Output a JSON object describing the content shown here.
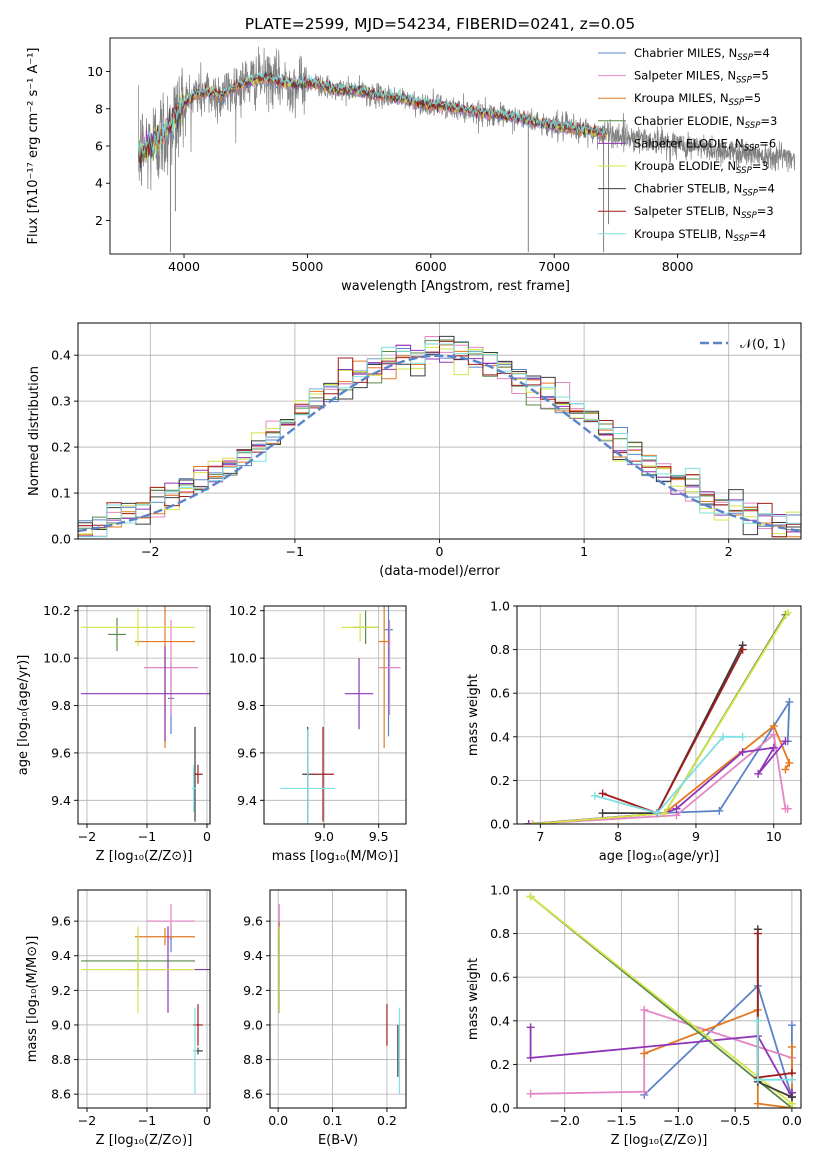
{
  "figure_title": "PLATE=2599, MJD=54234, FIBERID=0241, z=0.05",
  "colors": {
    "chabrier_miles": "#5b83c8",
    "salpeter_miles": "#e386c6",
    "kroupa_miles": "#e37a22",
    "chabrier_elodie": "#5a8a47",
    "salpeter_elodie": "#8f35b8",
    "kroupa_elodie": "#d4e64a",
    "chabrier_stelib": "#3c3c3c",
    "salpeter_stelib": "#a11c1c",
    "kroupa_stelib": "#7ee0e2",
    "data": "#808080",
    "grid": "#b0b0b0",
    "gaussian": "#5b83c8"
  },
  "chart_data": [
    {
      "panel": "spectrum",
      "type": "line",
      "xlabel": "wavelength [Angstrom, rest frame]",
      "ylabel": "Flux [fλ10⁻¹⁷ erg cm⁻² s⁻¹ A⁻¹]",
      "xlim": [
        3400,
        9000
      ],
      "ylim": [
        0.2,
        11.8
      ],
      "xticks": [
        4000,
        5000,
        6000,
        7000,
        8000
      ],
      "yticks": [
        2,
        4,
        6,
        8,
        10
      ],
      "legend_position": "top-right",
      "legend": [
        {
          "base": "Chabrier MILES, N",
          "sub": "SSP",
          "tail": "=4",
          "color_key": "chabrier_miles"
        },
        {
          "base": "Salpeter MILES, N",
          "sub": "SSP",
          "tail": "=5",
          "color_key": "salpeter_miles"
        },
        {
          "base": "Kroupa MILES, N",
          "sub": "SSP",
          "tail": "=5",
          "color_key": "kroupa_miles"
        },
        {
          "base": "Chabrier ELODIE, N",
          "sub": "SSP",
          "tail": "=3",
          "color_key": "chabrier_elodie"
        },
        {
          "base": "Salpeter ELODIE, N",
          "sub": "SSP",
          "tail": "=6",
          "color_key": "salpeter_elodie"
        },
        {
          "base": "Kroupa ELODIE, N",
          "sub": "SSP",
          "tail": "=3",
          "color_key": "kroupa_elodie"
        },
        {
          "base": "Chabrier STELIB, N",
          "sub": "SSP",
          "tail": "=4",
          "color_key": "chabrier_stelib"
        },
        {
          "base": "Salpeter STELIB, N",
          "sub": "SSP",
          "tail": "=3",
          "color_key": "salpeter_stelib"
        },
        {
          "base": "Kroupa STELIB, N",
          "sub": "SSP",
          "tail": "=4",
          "color_key": "kroupa_stelib"
        }
      ],
      "continuum": [
        [
          3630,
          5.6
        ],
        [
          3700,
          5.9
        ],
        [
          3800,
          6.4
        ],
        [
          3900,
          7.2
        ],
        [
          4000,
          8.3
        ],
        [
          4100,
          8.8
        ],
        [
          4200,
          8.9
        ],
        [
          4300,
          8.7
        ],
        [
          4400,
          9.1
        ],
        [
          4500,
          9.4
        ],
        [
          4600,
          9.6
        ],
        [
          4700,
          9.6
        ],
        [
          4800,
          9.4
        ],
        [
          4900,
          9.3
        ],
        [
          5000,
          9.4
        ],
        [
          5100,
          9.3
        ],
        [
          5200,
          9.0
        ],
        [
          5300,
          9.0
        ],
        [
          5400,
          9.0
        ],
        [
          5500,
          8.8
        ],
        [
          5600,
          8.7
        ],
        [
          5700,
          8.6
        ],
        [
          5800,
          8.5
        ],
        [
          5900,
          8.3
        ],
        [
          6000,
          8.2
        ],
        [
          6100,
          8.1
        ],
        [
          6200,
          8.0
        ],
        [
          6300,
          7.9
        ],
        [
          6400,
          7.8
        ],
        [
          6500,
          7.7
        ],
        [
          6600,
          7.6
        ],
        [
          6700,
          7.5
        ],
        [
          6800,
          7.4
        ],
        [
          6900,
          7.2
        ],
        [
          7000,
          7.1
        ],
        [
          7200,
          6.9
        ],
        [
          7400,
          6.7
        ],
        [
          7600,
          6.5
        ],
        [
          7800,
          6.3
        ],
        [
          8000,
          6.1
        ],
        [
          8200,
          5.9
        ],
        [
          8400,
          5.7
        ],
        [
          8600,
          5.6
        ],
        [
          8800,
          5.5
        ],
        [
          8950,
          5.4
        ]
      ],
      "model_end_wavelength": 7430,
      "sharp_features": [
        {
          "x": 3890,
          "y_min": 0.3
        },
        {
          "x": 3930,
          "y_min": 2.5
        },
        {
          "x": 6790,
          "y_min": 0.3
        },
        {
          "x": 7400,
          "y_min": 0.3
        },
        {
          "x": 7440,
          "y_min": 1.8
        }
      ]
    },
    {
      "panel": "residual_histogram",
      "type": "bar",
      "xlabel": "(data-model)/error",
      "ylabel": "Normed distribution",
      "xlim": [
        -2.5,
        2.5
      ],
      "ylim": [
        0,
        0.47
      ],
      "xticks": [
        -2,
        -1,
        0,
        1,
        2
      ],
      "xtick_labels": [
        "−2",
        "−1",
        "0",
        "1",
        "2"
      ],
      "yticks": [
        0.0,
        0.1,
        0.2,
        0.3,
        0.4
      ],
      "ytick_labels": [
        "0.0",
        "0.1",
        "0.2",
        "0.3",
        "0.4"
      ],
      "legend": {
        "label": "𝒩(0, 1)",
        "position": "top-right"
      },
      "bin_width": 0.1,
      "bin_start": -2.5,
      "series_keys": [
        "chabrier_miles",
        "salpeter_miles",
        "kroupa_miles",
        "chabrier_elodie",
        "salpeter_elodie",
        "kroupa_elodie",
        "chabrier_stelib",
        "salpeter_stelib",
        "kroupa_stelib"
      ],
      "gaussian": {
        "mean": 0,
        "sigma": 1
      }
    },
    {
      "panel": "age_vs_Z",
      "type": "scatter",
      "xlabel": "Z [log₁₀(Z/Z⊙)]",
      "ylabel": "age [log₁₀(age/yr)]",
      "xlim": [
        -2.15,
        0.05
      ],
      "ylim": [
        9.3,
        10.22
      ],
      "xticks": [
        -2,
        -1,
        0
      ],
      "xtick_labels": [
        "−2",
        "−1",
        "0"
      ],
      "yticks": [
        9.4,
        9.6,
        9.8,
        10.0,
        10.2
      ],
      "ytick_labels": [
        "9.4",
        "9.6",
        "9.8",
        "10.0",
        "10.2"
      ],
      "points": [
        {
          "key": "chabrier_miles",
          "x": -0.6,
          "xerr": 0.05,
          "y": 9.83,
          "yerr": 0.15
        },
        {
          "key": "salpeter_miles",
          "x": -0.6,
          "xerr": 0.45,
          "y": 9.96,
          "yerr": 0.2
        },
        {
          "key": "kroupa_miles",
          "x": -0.7,
          "xerr": 0.5,
          "y": 10.07,
          "yerr": 0.45
        },
        {
          "key": "chabrier_elodie",
          "x": -1.5,
          "xerr": 0.15,
          "y": 10.1,
          "yerr": 0.07
        },
        {
          "key": "salpeter_elodie",
          "x": -0.7,
          "xerr": 1.4,
          "y": 9.85,
          "yerr": 0.2
        },
        {
          "key": "kroupa_elodie",
          "x": -1.15,
          "xerr": 0.95,
          "y": 10.13,
          "yerr": 0.08
        },
        {
          "key": "chabrier_stelib",
          "x": -0.2,
          "xerr": 0.03,
          "y": 9.51,
          "yerr": 0.2
        },
        {
          "key": "salpeter_stelib",
          "x": -0.15,
          "xerr": 0.08,
          "y": 9.51,
          "yerr": 0.04
        },
        {
          "key": "kroupa_stelib",
          "x": -0.22,
          "xerr": 0.03,
          "y": 9.45,
          "yerr": 0.1
        }
      ]
    },
    {
      "panel": "age_vs_mass",
      "type": "scatter",
      "xlabel": "mass [log₁₀(M/M⊙)]",
      "ylabel": "",
      "xlim": [
        8.45,
        9.75
      ],
      "ylim": [
        9.3,
        10.22
      ],
      "xticks": [
        9.0,
        9.5
      ],
      "xtick_labels": [
        "9.0",
        "9.5"
      ],
      "yticks": [
        9.4,
        9.6,
        9.8,
        10.0,
        10.2
      ],
      "ytick_labels": [
        "9.4",
        "9.6",
        "9.8",
        "10.0",
        "10.2"
      ],
      "points": [
        {
          "key": "chabrier_miles",
          "x": 9.59,
          "xerr": 0.04,
          "y": 10.12,
          "yerr": 0.45
        },
        {
          "key": "salpeter_miles",
          "x": 9.6,
          "xerr": 0.1,
          "y": 9.96,
          "yerr": 0.2
        },
        {
          "key": "kroupa_miles",
          "x": 9.55,
          "xerr": 0.05,
          "y": 10.07,
          "yerr": 0.45
        },
        {
          "key": "chabrier_elodie",
          "x": 9.38,
          "xerr": 0.12,
          "y": 10.13,
          "yerr": 0.07
        },
        {
          "key": "salpeter_elodie",
          "x": 9.32,
          "xerr": 0.13,
          "y": 9.85,
          "yerr": 0.15
        },
        {
          "key": "kroupa_elodie",
          "x": 9.33,
          "xerr": 0.17,
          "y": 10.13,
          "yerr": 0.06
        },
        {
          "key": "chabrier_stelib",
          "x": 8.85,
          "xerr": 0.05,
          "y": 9.51,
          "yerr": 0.2
        },
        {
          "key": "salpeter_stelib",
          "x": 8.99,
          "xerr": 0.1,
          "y": 9.51,
          "yerr": 0.2
        },
        {
          "key": "kroupa_stelib",
          "x": 8.85,
          "xerr": 0.25,
          "y": 9.45,
          "yerr": 0.25
        }
      ]
    },
    {
      "panel": "weight_vs_age",
      "type": "line",
      "xlabel": "age [log₁₀(age/yr)]",
      "ylabel": "mass weight",
      "xlim": [
        6.7,
        10.35
      ],
      "ylim": [
        0.0,
        1.0
      ],
      "xticks": [
        7,
        8,
        9,
        10
      ],
      "xtick_labels": [
        "7",
        "8",
        "9",
        "10"
      ],
      "yticks": [
        0.0,
        0.2,
        0.4,
        0.6,
        0.8,
        1.0
      ],
      "ytick_labels": [
        "0.0",
        "0.2",
        "0.4",
        "0.6",
        "0.8",
        "1.0"
      ],
      "series": [
        {
          "key": "chabrier_miles",
          "x": [
            8.5,
            9.3,
            10.2,
            10.18
          ],
          "y": [
            0.05,
            0.06,
            0.56,
            0.38
          ]
        },
        {
          "key": "salpeter_miles",
          "x": [
            6.85,
            8.75,
            10.0,
            10.15,
            10.18
          ],
          "y": [
            0.0,
            0.04,
            0.41,
            0.07,
            0.07
          ]
        },
        {
          "key": "kroupa_miles",
          "x": [
            6.9,
            8.6,
            10.0,
            10.2,
            10.15
          ],
          "y": [
            0.0,
            0.05,
            0.45,
            0.28,
            0.25
          ]
        },
        {
          "key": "chabrier_elodie",
          "x": [
            6.85,
            8.6,
            10.15
          ],
          "y": [
            0.0,
            0.05,
            0.96
          ]
        },
        {
          "key": "salpeter_elodie",
          "x": [
            6.85,
            8.6,
            8.75,
            9.6,
            10.0,
            9.8,
            10.15
          ],
          "y": [
            0.0,
            0.05,
            0.07,
            0.33,
            0.35,
            0.23,
            0.38
          ]
        },
        {
          "key": "kroupa_elodie",
          "x": [
            6.9,
            8.6,
            10.18
          ],
          "y": [
            0.0,
            0.05,
            0.97
          ]
        },
        {
          "key": "chabrier_stelib",
          "x": [
            7.8,
            8.5,
            9.6
          ],
          "y": [
            0.05,
            0.05,
            0.82
          ]
        },
        {
          "key": "salpeter_stelib",
          "x": [
            7.8,
            8.5,
            9.6
          ],
          "y": [
            0.14,
            0.05,
            0.8
          ]
        },
        {
          "key": "kroupa_stelib",
          "x": [
            7.7,
            8.5,
            9.35,
            9.6
          ],
          "y": [
            0.13,
            0.05,
            0.4,
            0.4
          ]
        }
      ]
    },
    {
      "panel": "mass_vs_Z",
      "type": "scatter",
      "xlabel": "Z [log₁₀(Z/Z⊙)]",
      "ylabel": "mass [log₁₀(M/M⊙)]",
      "xlim": [
        -2.15,
        0.05
      ],
      "ylim": [
        8.52,
        9.78
      ],
      "xticks": [
        -2,
        -1,
        0
      ],
      "xtick_labels": [
        "−2",
        "−1",
        "0"
      ],
      "yticks": [
        8.6,
        8.8,
        9.0,
        9.2,
        9.4,
        9.6
      ],
      "ytick_labels": [
        "8.6",
        "8.8",
        "9.0",
        "9.2",
        "9.4",
        "9.6"
      ],
      "points": [
        {
          "key": "chabrier_miles",
          "x": -0.6,
          "xerr": 0.02,
          "y": 9.5,
          "yerr": 0.08
        },
        {
          "key": "salpeter_miles",
          "x": -0.6,
          "xerr": 0.4,
          "y": 9.6,
          "yerr": 0.1
        },
        {
          "key": "kroupa_miles",
          "x": -0.7,
          "xerr": 0.5,
          "y": 9.51,
          "yerr": 0.05
        },
        {
          "key": "chabrier_elodie",
          "x": -1.15,
          "xerr": 0.95,
          "y": 9.37,
          "yerr": 0.15
        },
        {
          "key": "salpeter_elodie",
          "x": -0.65,
          "xerr": 0.7,
          "y": 9.32,
          "yerr": 0.25
        },
        {
          "key": "kroupa_elodie",
          "x": -1.15,
          "xerr": 0.95,
          "y": 9.32,
          "yerr": 0.25
        },
        {
          "key": "chabrier_stelib",
          "x": -0.15,
          "xerr": 0.08,
          "y": 8.85,
          "yerr": 0.02
        },
        {
          "key": "salpeter_stelib",
          "x": -0.15,
          "xerr": 0.08,
          "y": 9.0,
          "yerr": 0.12
        },
        {
          "key": "kroupa_stelib",
          "x": -0.2,
          "xerr": 0.03,
          "y": 8.85,
          "yerr": 0.25
        }
      ]
    },
    {
      "panel": "mass_vs_EBV",
      "type": "scatter",
      "xlabel": "E(B-V)",
      "ylabel": "",
      "xlim": [
        -0.015,
        0.235
      ],
      "ylim": [
        8.52,
        9.78
      ],
      "xticks": [
        0.0,
        0.1,
        0.2
      ],
      "xtick_labels": [
        "0.0",
        "0.1",
        "0.2"
      ],
      "yticks": [
        8.6,
        8.8,
        9.0,
        9.2,
        9.4,
        9.6
      ],
      "ytick_labels": [
        "8.6",
        "8.8",
        "9.0",
        "9.2",
        "9.4",
        "9.6"
      ],
      "points": [
        {
          "key": "chabrier_miles",
          "x": 0.002,
          "xerr": 0,
          "y": 9.5,
          "yerr": 0.1
        },
        {
          "key": "salpeter_miles",
          "x": 0.002,
          "xerr": 0,
          "y": 9.6,
          "yerr": 0.1
        },
        {
          "key": "kroupa_miles",
          "x": 0.002,
          "xerr": 0,
          "y": 9.51,
          "yerr": 0.08
        },
        {
          "key": "chabrier_elodie",
          "x": 0.002,
          "xerr": 0,
          "y": 9.37,
          "yerr": 0.15
        },
        {
          "key": "salpeter_elodie",
          "x": 0.002,
          "xerr": 0,
          "y": 9.32,
          "yerr": 0.25
        },
        {
          "key": "kroupa_elodie",
          "x": 0.002,
          "xerr": 0,
          "y": 9.32,
          "yerr": 0.25
        },
        {
          "key": "chabrier_stelib",
          "x": 0.22,
          "xerr": 0,
          "y": 8.85,
          "yerr": 0.15
        },
        {
          "key": "salpeter_stelib",
          "x": 0.2,
          "xerr": 0,
          "y": 9.0,
          "yerr": 0.12
        },
        {
          "key": "kroupa_stelib",
          "x": 0.223,
          "xerr": 0,
          "y": 8.85,
          "yerr": 0.25
        }
      ]
    },
    {
      "panel": "weight_vs_Z",
      "type": "line",
      "xlabel": "Z [log₁₀(Z/Z⊙)]",
      "ylabel": "mass weight",
      "xlim": [
        -2.42,
        0.08
      ],
      "ylim": [
        0.0,
        1.0
      ],
      "xticks": [
        -2.0,
        -1.5,
        -1.0,
        -0.5,
        0.0
      ],
      "xtick_labels": [
        "−2.0",
        "−1.5",
        "−1.0",
        "−0.5",
        "0.0"
      ],
      "yticks": [
        0.0,
        0.2,
        0.4,
        0.6,
        0.8,
        1.0
      ],
      "ytick_labels": [
        "0.0",
        "0.2",
        "0.4",
        "0.6",
        "0.8",
        "1.0"
      ],
      "series": [
        {
          "key": "chabrier_miles",
          "x": [
            -1.3,
            -0.3,
            0.0,
            0.0
          ],
          "y": [
            0.06,
            0.56,
            0.05,
            0.38
          ]
        },
        {
          "key": "salpeter_miles",
          "x": [
            -2.3,
            -1.3,
            -1.3,
            0.0,
            0.0
          ],
          "y": [
            0.065,
            0.075,
            0.45,
            0.23,
            0.07
          ]
        },
        {
          "key": "kroupa_miles",
          "x": [
            -1.3,
            -0.3,
            -0.3,
            0.0,
            0.0
          ],
          "y": [
            0.25,
            0.45,
            0.02,
            0.0,
            0.28
          ]
        },
        {
          "key": "chabrier_elodie",
          "x": [
            -2.3,
            0.0,
            0.0
          ],
          "y": [
            0.97,
            0.0,
            0.05
          ]
        },
        {
          "key": "salpeter_elodie",
          "x": [
            -2.3,
            -2.3,
            -0.3,
            0.0,
            0.0
          ],
          "y": [
            0.37,
            0.23,
            0.33,
            0.05,
            0.07
          ]
        },
        {
          "key": "kroupa_elodie",
          "x": [
            -2.3,
            0.0,
            0.0
          ],
          "y": [
            0.97,
            0.02,
            0.0
          ]
        },
        {
          "key": "chabrier_stelib",
          "x": [
            -0.3,
            -0.3,
            0.0
          ],
          "y": [
            0.82,
            0.12,
            0.05
          ]
        },
        {
          "key": "salpeter_stelib",
          "x": [
            -0.3,
            -0.3,
            0.0
          ],
          "y": [
            0.8,
            0.14,
            0.16
          ]
        },
        {
          "key": "kroupa_stelib",
          "x": [
            -0.3,
            -0.3,
            0.0
          ],
          "y": [
            0.4,
            0.13,
            0.13
          ]
        }
      ]
    }
  ]
}
